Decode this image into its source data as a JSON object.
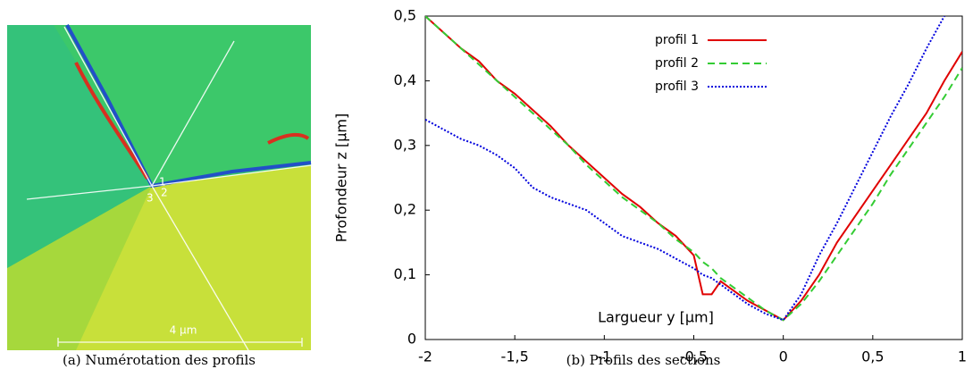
{
  "figure": {
    "image": {
      "labels": [
        "1",
        "2",
        "3"
      ],
      "scale_bar": "4 µm"
    },
    "captions": [
      "(a)  Numérotation des profils",
      "(b)  Profils des sections"
    ]
  },
  "chart_data": {
    "type": "line",
    "xlabel": "Largueur y [µm]",
    "ylabel": "Profondeur z [µm]",
    "x": [
      -2,
      -1.9,
      -1.8,
      -1.7,
      -1.6,
      -1.5,
      -1.4,
      -1.3,
      -1.2,
      -1.1,
      -1,
      -0.9,
      -0.8,
      -0.7,
      -0.6,
      -0.5,
      -0.45,
      -0.4,
      -0.35,
      -0.3,
      -0.2,
      -0.1,
      0,
      0.1,
      0.2,
      0.3,
      0.4,
      0.5,
      0.6,
      0.7,
      0.8,
      0.9,
      1
    ],
    "series": [
      {
        "name": "profil 1",
        "color": "#e00000",
        "dash": "none",
        "values": [
          0.5,
          0.475,
          0.45,
          0.43,
          0.4,
          0.38,
          0.355,
          0.33,
          0.3,
          0.275,
          0.25,
          0.225,
          0.205,
          0.18,
          0.16,
          0.13,
          0.07,
          0.07,
          0.09,
          0.08,
          0.06,
          0.045,
          0.03,
          0.06,
          0.1,
          0.15,
          0.19,
          0.23,
          0.27,
          0.31,
          0.35,
          0.4,
          0.445
        ]
      },
      {
        "name": "profil 2",
        "color": "#33cc33",
        "dash": "8 5",
        "values": [
          0.5,
          0.475,
          0.45,
          0.425,
          0.4,
          0.375,
          0.35,
          0.325,
          0.3,
          0.27,
          0.245,
          0.22,
          0.2,
          0.18,
          0.155,
          0.135,
          0.12,
          0.11,
          0.095,
          0.085,
          0.065,
          0.045,
          0.03,
          0.055,
          0.09,
          0.13,
          0.17,
          0.21,
          0.255,
          0.295,
          0.335,
          0.375,
          0.42
        ]
      },
      {
        "name": "profil 3",
        "color": "#0000dd",
        "dash": "2 2",
        "values": [
          0.34,
          0.325,
          0.31,
          0.3,
          0.285,
          0.265,
          0.235,
          0.22,
          0.21,
          0.2,
          0.18,
          0.16,
          0.15,
          0.14,
          0.125,
          0.11,
          0.1,
          0.095,
          0.085,
          0.075,
          0.055,
          0.04,
          0.03,
          0.07,
          0.13,
          0.18,
          0.235,
          0.29,
          0.345,
          0.395,
          0.45,
          0.5,
          null
        ]
      }
    ],
    "xlim": [
      -2,
      1
    ],
    "ylim": [
      0,
      0.5
    ],
    "xticks": [
      -2,
      {
        "value": -1.5,
        "label": "-1,5"
      },
      -1,
      {
        "value": -0.5,
        "label": "-0,5"
      },
      0,
      {
        "value": 0.5,
        "label": "0,5"
      },
      1
    ],
    "yticks": [
      0,
      {
        "value": 0.1,
        "label": "0,1"
      },
      {
        "value": 0.2,
        "label": "0,2"
      },
      {
        "value": 0.3,
        "label": "0,3"
      },
      {
        "value": 0.4,
        "label": "0,4"
      },
      {
        "value": 0.5,
        "label": "0,5"
      }
    ],
    "grid": false,
    "legend": "top"
  }
}
